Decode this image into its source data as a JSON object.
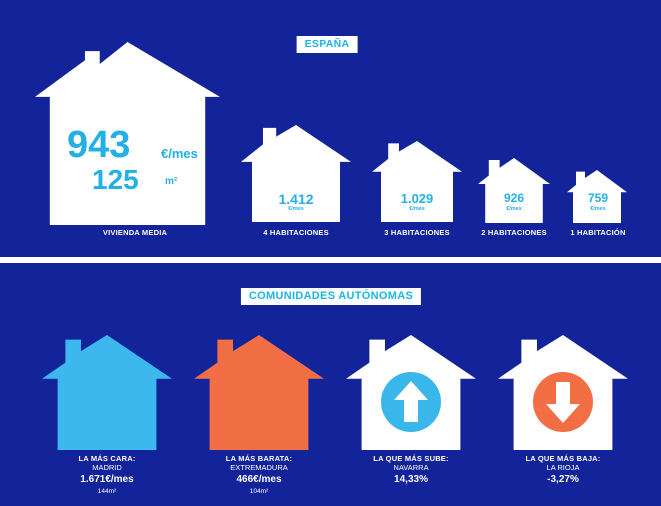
{
  "spain": {
    "banner": "ESPAÑA",
    "main": {
      "price": "943",
      "price_unit": "€/mes",
      "size": "125",
      "size_unit": "m²",
      "label": "VIVIENDA MEDIA"
    },
    "houses": [
      {
        "value": "1.412",
        "unit": "€/mes",
        "label": "4 HABITACIONES"
      },
      {
        "value": "1.029",
        "unit": "€/mes",
        "label": "3 HABITACIONES"
      },
      {
        "value": "926",
        "unit": "€/mes",
        "label": "2 HABITACIONES"
      },
      {
        "value": "759",
        "unit": "€/mes",
        "label": "1 HABITACIÓN"
      }
    ]
  },
  "regions": {
    "banner": "COMUNIDADES AUTÓNOMAS",
    "cards": [
      {
        "title": "LA MÁS CARA:",
        "region": "MADRID",
        "value": "1.671€/mes",
        "area": "144m²",
        "house_color": "#3cb8ef"
      },
      {
        "title": "LA MÁS BARATA:",
        "region": "EXTREMADURA",
        "value": "466€/mes",
        "area": "104m²",
        "house_color": "#f26f45"
      },
      {
        "title": "LA QUE MÁS SUBE:",
        "region": "NAVARRA",
        "value": "14,33%",
        "house_color": "#ffffff",
        "icon": "arrow-up-icon",
        "icon_color": "#39b7ea"
      },
      {
        "title": "LA QUE MÁS BAJA:",
        "region": "LA RIOJA",
        "value": "-3,27%",
        "house_color": "#ffffff",
        "icon": "arrow-down-icon",
        "icon_color": "#f26f45"
      }
    ]
  },
  "colors": {
    "background": "#13239a",
    "accent_blue": "#22b0e5",
    "accent_orange": "#f26f45",
    "white": "#ffffff"
  }
}
